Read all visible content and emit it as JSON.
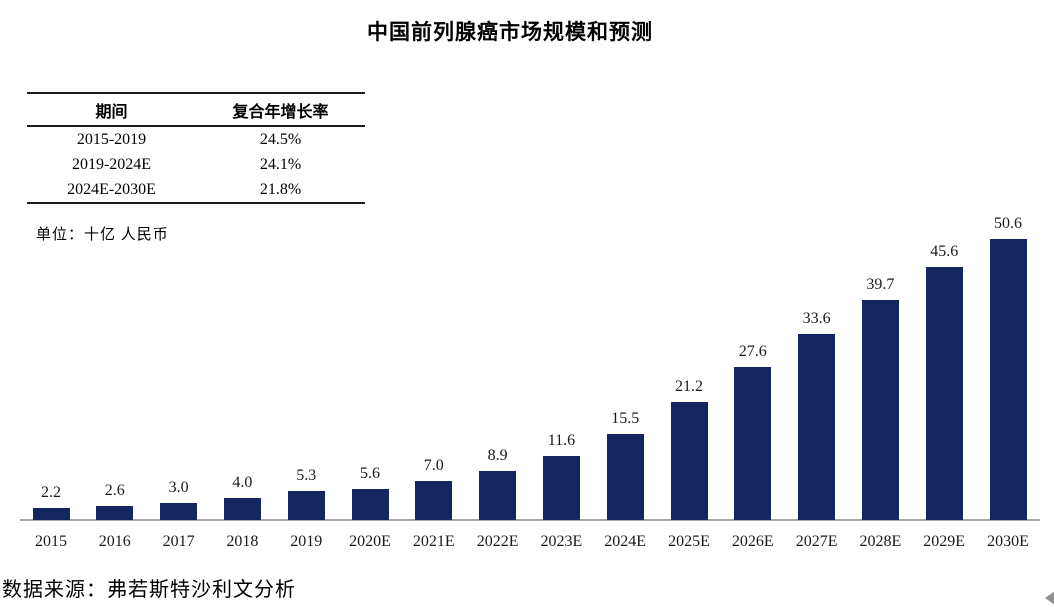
{
  "title": "中国前列腺癌市场规模和预测",
  "cagr_table": {
    "headers": [
      "期间",
      "复合年增长率"
    ],
    "rows": [
      {
        "period": "2015-2019",
        "cagr": "24.5%"
      },
      {
        "period": "2019-2024E",
        "cagr": "24.1%"
      },
      {
        "period": "2024E-2030E",
        "cagr": "21.8%"
      }
    ]
  },
  "unit_note": "单位：十亿 人民币",
  "source": "数据来源：弗若斯特沙利文分析",
  "colors": {
    "bar": "#13265f",
    "axis": "#a6a6a6"
  },
  "chart_data": {
    "type": "bar",
    "title": "中国前列腺癌市场规模和预测",
    "categories": [
      "2015",
      "2016",
      "2017",
      "2018",
      "2019",
      "2020E",
      "2021E",
      "2022E",
      "2023E",
      "2024E",
      "2025E",
      "2026E",
      "2027E",
      "2028E",
      "2029E",
      "2030E"
    ],
    "values": [
      2.2,
      2.6,
      3.0,
      4.0,
      5.3,
      5.6,
      7.0,
      8.9,
      11.6,
      15.5,
      21.2,
      27.6,
      33.6,
      39.7,
      45.6,
      50.6
    ],
    "labels": [
      "2.2",
      "2.6",
      "3.0",
      "4.0",
      "5.3",
      "5.6",
      "7.0",
      "8.9",
      "11.6",
      "15.5",
      "21.2",
      "27.6",
      "33.6",
      "39.7",
      "45.6",
      "50.6"
    ],
    "xlabel": "",
    "ylabel": "十亿 人民币",
    "ylim": [
      0,
      55
    ],
    "grid": false,
    "legend": false,
    "data_labels": true,
    "bar_color": "#13265f"
  }
}
